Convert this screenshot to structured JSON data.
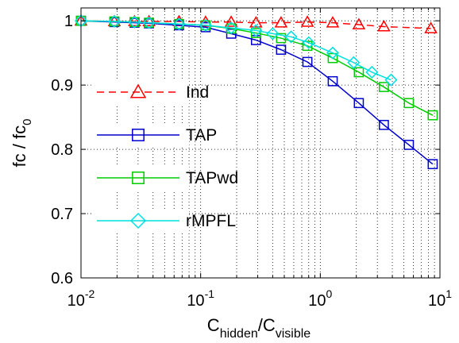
{
  "chart_data": {
    "type": "line",
    "title": "",
    "xscale": "log",
    "xlim": [
      0.01,
      10
    ],
    "ylim": [
      0.6,
      1.02
    ],
    "grid": true,
    "legend_position": "middle-left",
    "xlabel": {
      "main": "C",
      "sub1": "hidden",
      "slash": "/C",
      "sub2": "visible"
    },
    "ylabel": {
      "main": "fc / fc",
      "sub": "0"
    },
    "x_ticks": [
      {
        "value": 0.01,
        "base": "10",
        "exp": "-2"
      },
      {
        "value": 0.1,
        "base": "10",
        "exp": "-1"
      },
      {
        "value": 1,
        "base": "10",
        "exp": "0"
      },
      {
        "value": 10,
        "base": "10",
        "exp": "1"
      }
    ],
    "y_ticks": [
      {
        "value": 0.6,
        "label": "0.6"
      },
      {
        "value": 0.7,
        "label": "0.7"
      },
      {
        "value": 0.8,
        "label": "0.8"
      },
      {
        "value": 0.9,
        "label": "0.9"
      },
      {
        "value": 1.0,
        "label": "1"
      }
    ],
    "series": [
      {
        "name": "Ind",
        "color": "#ff0000",
        "marker": "triangle",
        "dash": true,
        "x": [
          0.01,
          0.019,
          0.028,
          0.037,
          0.066,
          0.11,
          0.18,
          0.29,
          0.47,
          0.78,
          1.27,
          2.1,
          3.4,
          8.4
        ],
        "y": [
          1.0,
          0.999,
          0.999,
          0.999,
          0.999,
          0.998,
          0.998,
          0.997,
          0.997,
          0.998,
          0.997,
          0.994,
          0.991,
          0.988
        ]
      },
      {
        "name": "TAP",
        "color": "#0000cc",
        "marker": "square",
        "dash": false,
        "x": [
          0.01,
          0.019,
          0.028,
          0.037,
          0.066,
          0.11,
          0.18,
          0.29,
          0.47,
          0.78,
          1.27,
          2.1,
          3.4,
          5.5,
          8.7
        ],
        "y": [
          1.0,
          0.998,
          0.997,
          0.996,
          0.993,
          0.99,
          0.98,
          0.97,
          0.955,
          0.936,
          0.906,
          0.872,
          0.838,
          0.807,
          0.777
        ]
      },
      {
        "name": "TAPwd",
        "color": "#00cc00",
        "marker": "square",
        "dash": false,
        "x": [
          0.01,
          0.019,
          0.028,
          0.037,
          0.066,
          0.11,
          0.18,
          0.29,
          0.47,
          0.78,
          1.27,
          2.1,
          3.4,
          5.5,
          8.7
        ],
        "y": [
          1.0,
          0.999,
          0.998,
          0.997,
          0.995,
          0.993,
          0.988,
          0.981,
          0.973,
          0.961,
          0.942,
          0.92,
          0.897,
          0.872,
          0.853
        ]
      },
      {
        "name": "rMPFL",
        "color": "#00e0e0",
        "marker": "diamond",
        "dash": false,
        "x": [
          0.01,
          0.019,
          0.028,
          0.037,
          0.066,
          0.11,
          0.18,
          0.29,
          0.4,
          0.57,
          0.8,
          1.27,
          1.9,
          2.7,
          3.9
        ],
        "y": [
          1.0,
          0.999,
          0.998,
          0.997,
          0.995,
          0.993,
          0.989,
          0.985,
          0.98,
          0.975,
          0.966,
          0.95,
          0.935,
          0.92,
          0.908
        ]
      }
    ]
  }
}
